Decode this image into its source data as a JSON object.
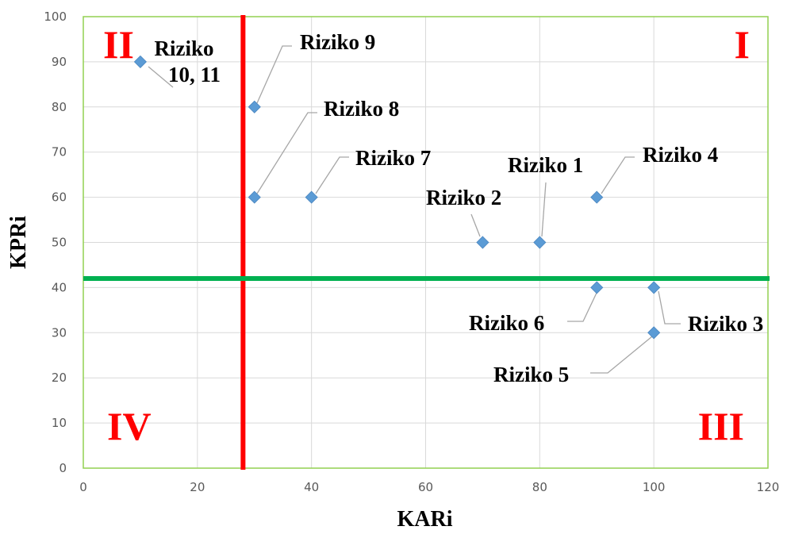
{
  "chart_data": {
    "type": "scatter",
    "xlabel": "KARi",
    "ylabel": "KPRi",
    "xlim": [
      0,
      120
    ],
    "ylim": [
      0,
      100
    ],
    "x_ticks": [
      "0",
      "20",
      "40",
      "60",
      "80",
      "100",
      "120"
    ],
    "y_ticks": [
      "0",
      "10",
      "20",
      "30",
      "40",
      "50",
      "60",
      "70",
      "80",
      "90",
      "100"
    ],
    "grid": true,
    "points": [
      {
        "x": 10,
        "y": 90,
        "label": [
          "Riziko",
          "10, 11"
        ]
      },
      {
        "x": 30,
        "y": 80,
        "label": [
          "Riziko 9"
        ]
      },
      {
        "x": 30,
        "y": 60,
        "label": [
          "Riziko 8"
        ]
      },
      {
        "x": 40,
        "y": 60,
        "label": [
          "Riziko 7"
        ]
      },
      {
        "x": 70,
        "y": 50,
        "label": [
          "Riziko 2"
        ]
      },
      {
        "x": 80,
        "y": 50,
        "label": [
          "Riziko 1"
        ]
      },
      {
        "x": 90,
        "y": 60,
        "label": [
          "Riziko 4"
        ]
      },
      {
        "x": 90,
        "y": 40,
        "label": [
          "Riziko 6"
        ]
      },
      {
        "x": 100,
        "y": 40,
        "label": [
          "Riziko 3"
        ]
      },
      {
        "x": 100,
        "y": 30,
        "label": [
          "Riziko 5"
        ]
      }
    ],
    "vertical_line": {
      "x": 28,
      "color": "#ff0000"
    },
    "horizontal_line": {
      "y": 42,
      "color": "#00b050"
    },
    "quadrants": [
      {
        "label": "I",
        "position": "top-right"
      },
      {
        "label": "II",
        "position": "top-left"
      },
      {
        "label": "III",
        "position": "bottom-right"
      },
      {
        "label": "IV",
        "position": "bottom-left"
      }
    ],
    "colors": {
      "marker": "#5b9bd5",
      "quadrant_label": "#ff0000",
      "plot_border": "#92d050",
      "grid": "#d9d9d9"
    }
  }
}
